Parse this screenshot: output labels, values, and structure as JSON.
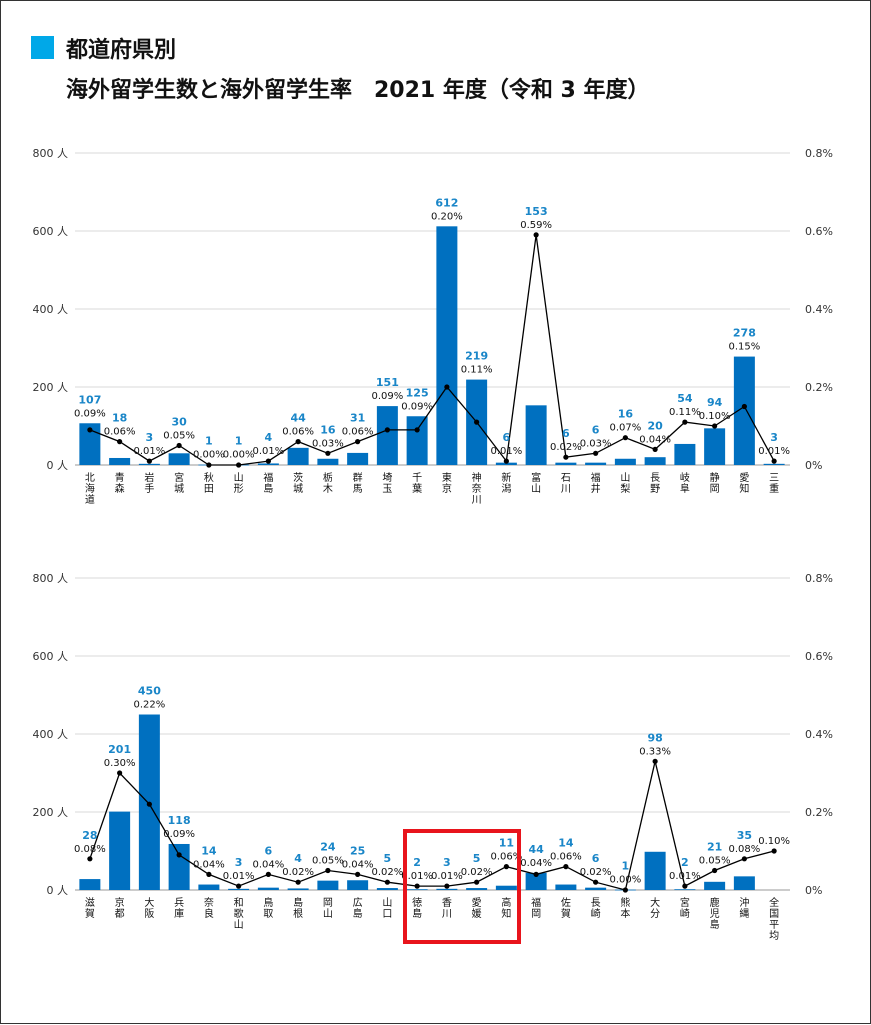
{
  "title": {
    "line1": "都道府県別",
    "line2": "海外留学生数と海外留学生率　2021 年度（令和 3 年度）",
    "accent_color": "#00a8e8"
  },
  "colors": {
    "bar": "#0070c0",
    "bar_label": "#1a86c8",
    "line": "#000000",
    "highlight": "#e8141c"
  },
  "chart_data": [
    {
      "type": "bar+line",
      "y_left": {
        "ticks": [
          "0 人",
          "200 人",
          "400 人",
          "600 人",
          "800 人"
        ],
        "lim": [
          0,
          800
        ]
      },
      "y_right": {
        "ticks": [
          "0%",
          "0.2%",
          "0.4%",
          "0.6%",
          "0.8%"
        ],
        "lim": [
          0,
          0.8
        ]
      },
      "categories": [
        "北海道",
        "青森",
        "岩手",
        "宮城",
        "秋田",
        "山形",
        "福島",
        "茨城",
        "栃木",
        "群馬",
        "埼玉",
        "千葉",
        "東京",
        "神奈川",
        "新潟",
        "富山",
        "石川",
        "福井",
        "山梨",
        "長野",
        "岐阜",
        "静岡",
        "愛知",
        "三重"
      ],
      "bar_values": [
        107,
        18,
        3,
        30,
        1,
        1,
        4,
        44,
        16,
        31,
        151,
        125,
        612,
        219,
        6,
        153,
        6,
        6,
        16,
        20,
        54,
        94,
        278,
        3
      ],
      "bar_labels": [
        "107",
        "18",
        "3",
        "30",
        "1",
        "1",
        "4",
        "44",
        "16",
        "31",
        "151",
        "125",
        "612",
        "219",
        "6",
        "153",
        "6",
        "6",
        "16",
        "20",
        "54",
        "94",
        "278",
        "3"
      ],
      "line_values": [
        0.09,
        0.06,
        0.01,
        0.05,
        0.0,
        0.0,
        0.01,
        0.06,
        0.03,
        0.06,
        0.09,
        0.09,
        0.2,
        0.11,
        0.01,
        0.59,
        0.02,
        0.03,
        0.07,
        0.04,
        0.11,
        0.1,
        0.15,
        0.01
      ],
      "line_labels": [
        "0.09%",
        "0.06%",
        "0.01%",
        "0.05%",
        "0.00%",
        "0.00%",
        "0.01%",
        "0.06%",
        "0.03%",
        "0.06%",
        "0.09%",
        "0.09%",
        "0.20%",
        "0.11%",
        "0.01%",
        "0.59%",
        "0.02%",
        "0.03%",
        "0.07%",
        "0.04%",
        "0.11%",
        "0.10%",
        "0.15%",
        "0.01%"
      ]
    },
    {
      "type": "bar+line",
      "y_left": {
        "ticks": [
          "0 人",
          "200 人",
          "400 人",
          "600 人",
          "800 人"
        ],
        "lim": [
          0,
          800
        ]
      },
      "y_right": {
        "ticks": [
          "0%",
          "0.2%",
          "0.4%",
          "0.6%",
          "0.8%"
        ],
        "lim": [
          0,
          0.8
        ]
      },
      "categories": [
        "滋賀",
        "京都",
        "大阪",
        "兵庫",
        "奈良",
        "和歌山",
        "鳥取",
        "島根",
        "岡山",
        "広島",
        "山口",
        "徳島",
        "香川",
        "愛媛",
        "高知",
        "福岡",
        "佐賀",
        "長崎",
        "熊本",
        "大分",
        "宮崎",
        "鹿児島",
        "沖縄",
        "全国平均"
      ],
      "bar_values": [
        28,
        201,
        450,
        118,
        14,
        3,
        6,
        4,
        24,
        25,
        5,
        2,
        3,
        5,
        11,
        44,
        14,
        6,
        1,
        98,
        2,
        21,
        35,
        null
      ],
      "bar_labels": [
        "28",
        "201",
        "450",
        "118",
        "14",
        "3",
        "6",
        "4",
        "24",
        "25",
        "5",
        "2",
        "3",
        "5",
        "11",
        "44",
        "14",
        "6",
        "1",
        "98",
        "2",
        "21",
        "35",
        ""
      ],
      "line_values": [
        0.08,
        0.3,
        0.22,
        0.09,
        0.04,
        0.01,
        0.04,
        0.02,
        0.05,
        0.04,
        0.02,
        0.01,
        0.01,
        0.02,
        0.06,
        0.04,
        0.06,
        0.02,
        0.0,
        0.33,
        0.01,
        0.05,
        0.08,
        0.1
      ],
      "line_labels": [
        "0.08%",
        "0.30%",
        "0.22%",
        "0.09%",
        "0.04%",
        "0.01%",
        "0.04%",
        "0.02%",
        "0.05%",
        "0.04%",
        "0.02%",
        "0.01%",
        "0.01%",
        "0.02%",
        "0.06%",
        "0.04%",
        "0.06%",
        "0.02%",
        "0.00%",
        "0.33%",
        "0.01%",
        "0.05%",
        "0.08%",
        "0.10%"
      ],
      "highlight_categories": [
        "徳島",
        "香川",
        "愛媛",
        "高知"
      ]
    }
  ]
}
